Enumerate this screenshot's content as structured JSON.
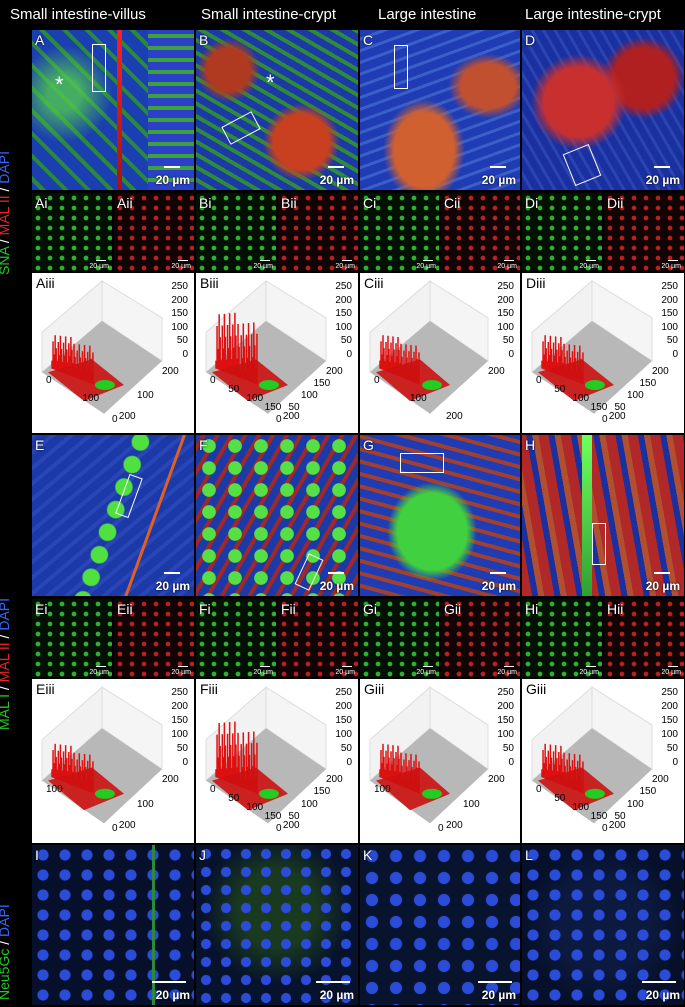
{
  "headers": [
    "Small intestine-villus",
    "Small intestine-crypt",
    "Large intestine",
    "Large intestine-crypt"
  ],
  "side_labels": {
    "top": {
      "a": "SNA",
      "sep1": " / ",
      "b": "MAL II",
      "sep2": " / ",
      "c": "DAPI"
    },
    "middle": {
      "a": "MAL I",
      "sep1": " / ",
      "b": "MAL II",
      "sep2": " / ",
      "c": "DAPI"
    },
    "bottom": {
      "a": "Neu5Gc",
      "sep1": " / ",
      "b": "DAPI"
    }
  },
  "colors": {
    "green": "#22cc22",
    "red": "#ee2222",
    "blue": "#3366ff"
  },
  "scale_bar": "20 µm",
  "row1": {
    "labels": [
      "A",
      "B",
      "C",
      "D"
    ]
  },
  "row1_small": {
    "labels": [
      "Ai",
      "Aii",
      "Bi",
      "Bii",
      "Ci",
      "Cii",
      "Di",
      "Dii"
    ]
  },
  "row1_plots": {
    "labels": [
      "Aiii",
      "Biii",
      "Ciii",
      "Diii"
    ],
    "z_ticks": [
      "250",
      "200",
      "150",
      "100",
      "50",
      "0"
    ],
    "x_ticks": [
      [
        "0",
        "100",
        "200"
      ],
      [
        "0",
        "50",
        "100",
        "150",
        "200"
      ],
      [
        "0",
        "100",
        "200"
      ],
      [
        "0",
        "50",
        "100",
        "150",
        "200"
      ]
    ],
    "y_ticks": [
      [
        "200",
        "100",
        "0"
      ],
      [
        "200",
        "150",
        "100",
        "50",
        "0"
      ],
      [
        "200"
      ],
      [
        "200",
        "150",
        "100",
        "50",
        "0"
      ]
    ]
  },
  "row2": {
    "labels": [
      "E",
      "F",
      "G",
      "H"
    ]
  },
  "row2_small": {
    "labels": [
      "Ei",
      "Eii",
      "Fi",
      "Fii",
      "Gi",
      "Gii",
      "Hi",
      "Hii"
    ]
  },
  "row2_plots": {
    "labels": [
      "Eiii",
      "Fiii",
      "Giii",
      "Giii"
    ],
    "z_ticks": [
      "250",
      "200",
      "150",
      "100",
      "50",
      "0"
    ],
    "x_ticks": [
      [
        "100",
        "200"
      ],
      [
        "0",
        "50",
        "100",
        "150",
        "200"
      ],
      [
        "100",
        "200"
      ],
      [
        "0",
        "50",
        "100",
        "150",
        "200"
      ]
    ],
    "y_ticks": [
      [
        "200",
        "100",
        "0"
      ],
      [
        "200",
        "150",
        "100",
        "50",
        "0"
      ],
      [
        "200",
        "100",
        "0"
      ],
      [
        "200",
        "150",
        "100",
        "50",
        "0"
      ]
    ]
  },
  "row3": {
    "labels": [
      "I",
      "J",
      "K",
      "L"
    ]
  }
}
